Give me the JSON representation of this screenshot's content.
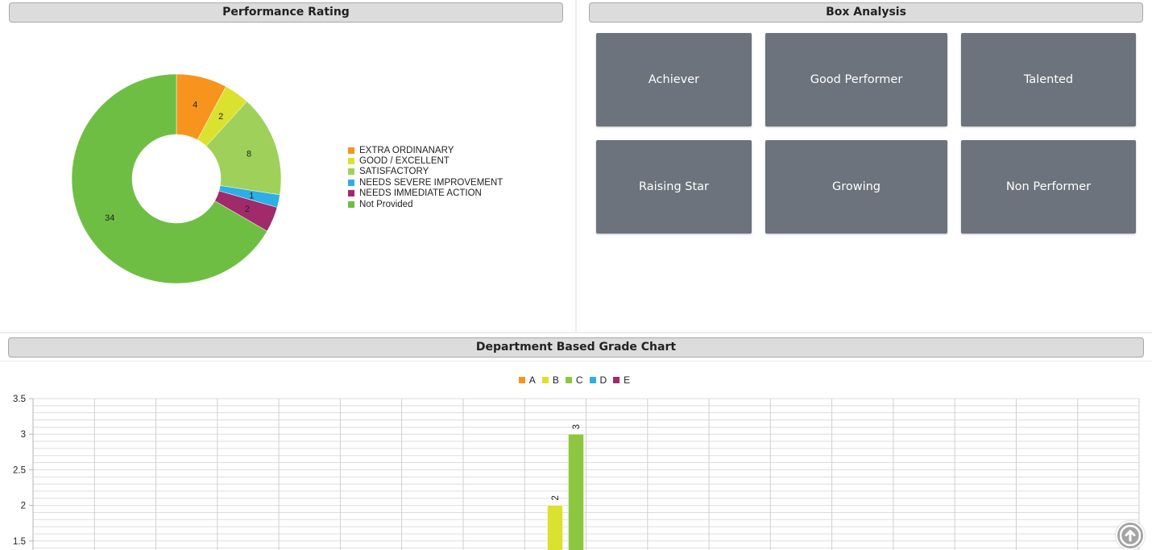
{
  "sections": {
    "performance_title": "Performance Rating",
    "box_title": "Box Analysis",
    "department_title": "Department Based Grade Chart"
  },
  "box_analysis": {
    "tiles": [
      {
        "label": "Achiever"
      },
      {
        "label": "Good Performer"
      },
      {
        "label": "Talented"
      },
      {
        "label": "Raising Star"
      },
      {
        "label": "Growing"
      },
      {
        "label": "Non Performer"
      }
    ],
    "tile_color": "#6c737c"
  },
  "scroll_top_icon": "arrow-up-circle-icon",
  "chart_data": [
    {
      "type": "pie",
      "variant": "donut",
      "title": "Performance Rating",
      "legend_position": "right",
      "series": [
        {
          "name": "EXTRA ORDINANARY",
          "value": 4,
          "color": "#f7941d"
        },
        {
          "name": "GOOD / EXCELLENT",
          "value": 2,
          "color": "#dbe12f"
        },
        {
          "name": "SATISFACTORY",
          "value": 8,
          "color": "#9fd15a"
        },
        {
          "name": "NEEDS SEVERE IMPROVEMENT",
          "value": 1,
          "color": "#2eaee6"
        },
        {
          "name": "NEEDS IMMEDIATE ACTION",
          "value": 2,
          "color": "#a12a6a"
        },
        {
          "name": "Not Provided",
          "value": 34,
          "color": "#6fbe44"
        }
      ]
    },
    {
      "type": "bar",
      "title": "Department Based Grade Chart",
      "legend_position": "top",
      "ylim": [
        1.5,
        3.5
      ],
      "yticks": [
        "1.5",
        "2",
        "2.5",
        "3",
        "3.5"
      ],
      "grid": true,
      "series": [
        {
          "name": "A",
          "color": "#f7941d",
          "values": [
            null
          ]
        },
        {
          "name": "B",
          "color": "#dbe12f",
          "values": [
            2
          ]
        },
        {
          "name": "C",
          "color": "#8dc63f",
          "values": [
            3
          ]
        },
        {
          "name": "D",
          "color": "#2eaee6",
          "values": [
            null
          ]
        },
        {
          "name": "E",
          "color": "#a12a6a",
          "values": [
            null
          ]
        }
      ],
      "data_labels": [
        "2",
        "3"
      ]
    }
  ]
}
